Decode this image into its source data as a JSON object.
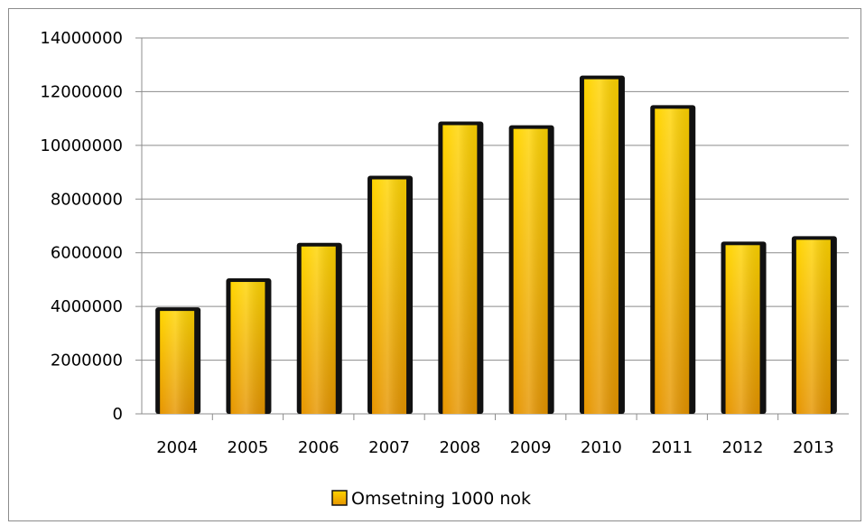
{
  "chart_data": {
    "type": "bar",
    "categories": [
      "2004",
      "2005",
      "2006",
      "2007",
      "2008",
      "2009",
      "2010",
      "2011",
      "2012",
      "2013"
    ],
    "series": [
      {
        "name": "Omsetning 1000 nok",
        "values": [
          3900000,
          4980000,
          6300000,
          8800000,
          10820000,
          10680000,
          12530000,
          11430000,
          6350000,
          6550000
        ]
      }
    ],
    "title": "",
    "xlabel": "",
    "ylabel": "",
    "ylim": [
      0,
      14000000
    ],
    "yticks": [
      "0",
      "2000000",
      "4000000",
      "6000000",
      "8000000",
      "10000000",
      "12000000",
      "14000000"
    ],
    "grid": true,
    "legend_position": "bottom",
    "colors": {
      "bar_fill_top": "#ffd400",
      "bar_fill_bottom": "#e69500",
      "bar_edge": "#111111",
      "grid": "#8c8c8c"
    }
  }
}
